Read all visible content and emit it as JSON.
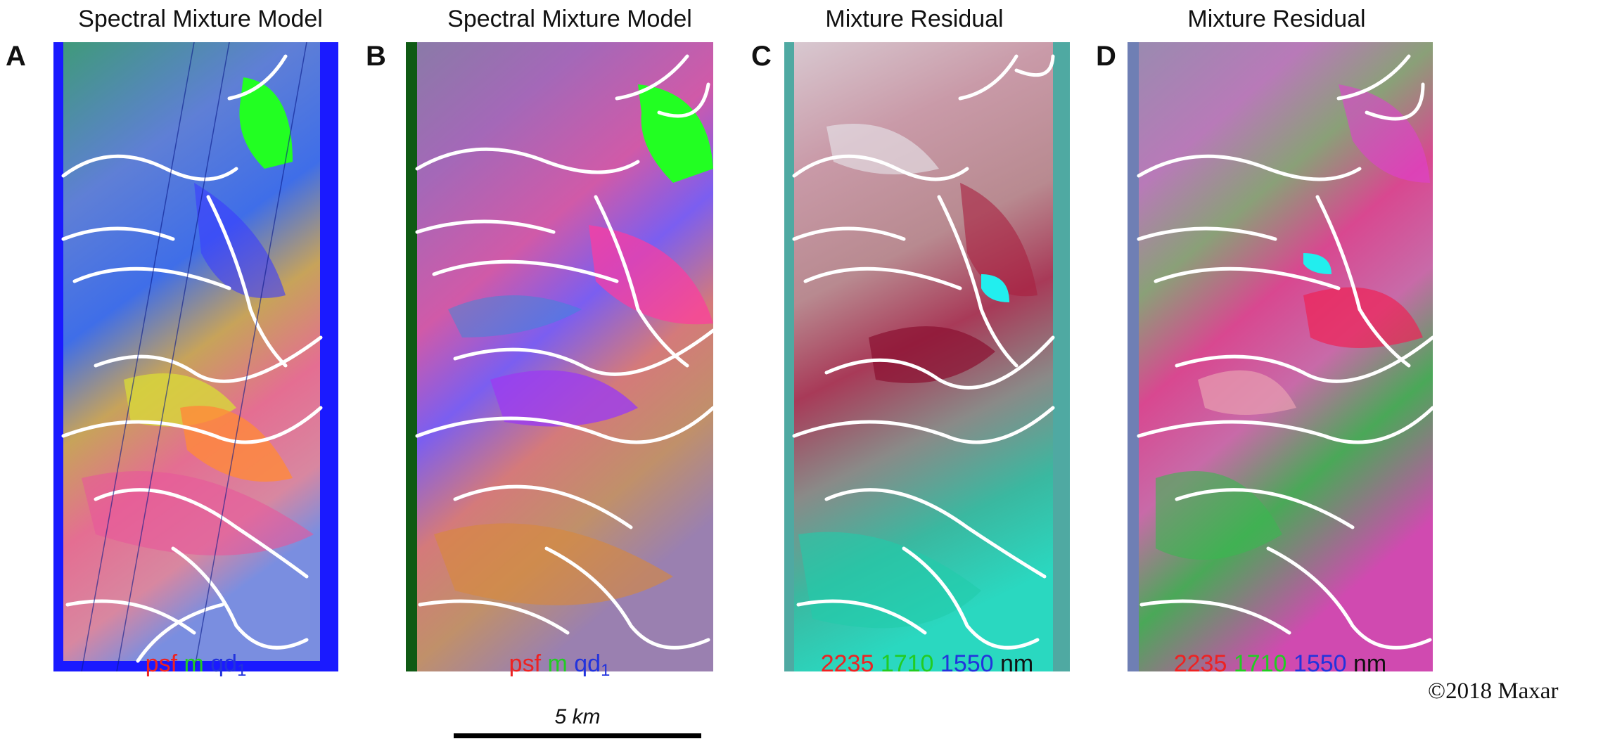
{
  "panels": [
    {
      "letter": "A",
      "title": "Spectral Mixture Model",
      "legend": {
        "r": "psf",
        "g": "m",
        "b": "qd",
        "b_sub": "1",
        "unit": ""
      },
      "border_color": "#1a1aff"
    },
    {
      "letter": "B",
      "title": "Spectral Mixture Model",
      "legend": {
        "r": "psf",
        "g": "m",
        "b": "qd",
        "b_sub": "1",
        "unit": ""
      },
      "border_color": "#0f5a14"
    },
    {
      "letter": "C",
      "title": "Mixture Residual",
      "legend": {
        "r": "2235",
        "g": "1710",
        "b": "1550",
        "b_sub": "",
        "unit": "nm"
      },
      "border_color": "#4fa9a2"
    },
    {
      "letter": "D",
      "title": "Mixture Residual",
      "legend": {
        "r": "2235",
        "g": "1710",
        "b": "1550",
        "b_sub": "",
        "unit": "nm"
      },
      "border_color": "#6f7fb4"
    }
  ],
  "scalebar": {
    "label": "5 km"
  },
  "copyright": "©2018 Maxar",
  "colors": {
    "legend_red": "#ee2222",
    "legend_green": "#22cc22",
    "legend_blue": "#2233dd"
  }
}
